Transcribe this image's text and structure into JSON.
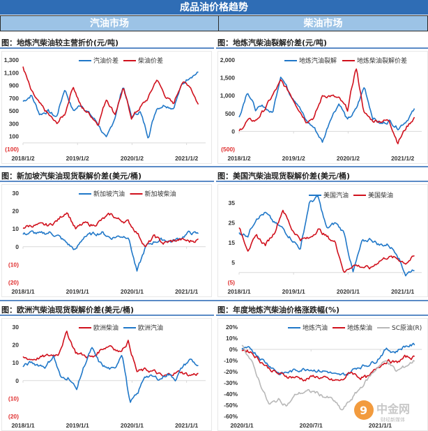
{
  "header": {
    "title": "成品油价格趋势",
    "left_section": "汽油市场",
    "right_section": "柴油市场"
  },
  "watermark": {
    "text": "中金网",
    "sub": "财经新媒体",
    "url": "CNGOLD.COM.CN"
  },
  "colors": {
    "blue": "#1f77c8",
    "red": "#d0101c",
    "gray": "#b8b8b8",
    "header": "#2f6db5",
    "section": "#9cc3e6"
  },
  "chart_data": [
    {
      "type": "line",
      "title": "图：地炼汽柴油较主营折价(元/吨)",
      "ylim": [
        -100,
        1300
      ],
      "yticks": [
        "1,300",
        "1,100",
        "900",
        "700",
        "500",
        "300",
        "100",
        "(100)"
      ],
      "ytick_values": [
        1300,
        1100,
        900,
        700,
        500,
        300,
        100,
        -100
      ],
      "xticks": [
        "2018/1/2",
        "2019/1/2",
        "2020/1/2",
        "2021/1/2"
      ],
      "xrange": [
        0,
        3.35
      ],
      "xtick_pos": [
        0,
        1,
        2,
        3
      ],
      "series": [
        {
          "name": "汽油价差",
          "color": "#1f77c8",
          "values": [
            650,
            750,
            450,
            500,
            400,
            850,
            500,
            600,
            450,
            300,
            50,
            400,
            900,
            400,
            500,
            100,
            550,
            600,
            550,
            900,
            1050,
            1100
          ]
        },
        {
          "name": "柴油价差",
          "color": "#d0101c",
          "values": [
            1200,
            800,
            600,
            450,
            300,
            450,
            900,
            550,
            450,
            300,
            700,
            450,
            850,
            400,
            550,
            700,
            1000,
            750,
            600,
            950,
            900,
            600
          ]
        }
      ]
    },
    {
      "type": "line",
      "title": "图：地炼汽柴油裂解价差(元/吨)",
      "ylim": [
        -500,
        2000
      ],
      "yticks": [
        "2,000",
        "1,500",
        "1,000",
        "500",
        "0",
        "(500)"
      ],
      "ytick_values": [
        2000,
        1500,
        1000,
        500,
        0,
        -500
      ],
      "xticks": [
        "2018/1/2",
        "2019/1/2",
        "2020/1/2",
        "2021/1/2"
      ],
      "xrange": [
        0,
        3.35
      ],
      "xtick_pos": [
        0,
        1,
        2,
        3
      ],
      "series": [
        {
          "name": "地炼汽油裂解",
          "color": "#1f77c8",
          "values": [
            400,
            1150,
            600,
            700,
            500,
            1600,
            1100,
            800,
            300,
            100,
            -300,
            400,
            800,
            300,
            600,
            1250,
            400,
            200,
            300,
            100,
            300,
            600
          ]
        },
        {
          "name": "地炼柴油裂解价差",
          "color": "#d0101c",
          "values": [
            0,
            300,
            300,
            600,
            1000,
            1400,
            1100,
            700,
            300,
            400,
            1000,
            1000,
            900,
            600,
            1800,
            500,
            300,
            300,
            300,
            -300,
            100,
            400
          ]
        }
      ]
    },
    {
      "type": "line",
      "title": "图：新加坡汽柴油现货裂解价差(美元/桶)",
      "ylim": [
        -20,
        30
      ],
      "yticks": [
        "30",
        "20",
        "10",
        "0",
        "(10)",
        "(20)"
      ],
      "ytick_values": [
        30,
        20,
        10,
        0,
        -10,
        -20
      ],
      "xticks": [
        "2018/1/1",
        "2019/1/1",
        "2020/1/1",
        "2021/1/1"
      ],
      "xrange": [
        0,
        3.35
      ],
      "xtick_pos": [
        0,
        1,
        2,
        3
      ],
      "series": [
        {
          "name": "新加坡汽油",
          "color": "#1f77c8",
          "values": [
            7,
            8,
            7,
            8,
            6,
            2,
            -2,
            6,
            7,
            8,
            5,
            6,
            6,
            -14,
            0,
            3,
            4,
            3,
            5,
            8,
            7
          ]
        },
        {
          "name": "新加坡柴油",
          "color": "#d0101c",
          "values": [
            11,
            12,
            12,
            12,
            15,
            20,
            10,
            13,
            12,
            15,
            18,
            15,
            14,
            8,
            0,
            6,
            2,
            3,
            4,
            3,
            4
          ]
        }
      ]
    },
    {
      "type": "line",
      "title": "图：美国汽柴油现货裂解价差(美元/桶)",
      "ylim": [
        -5,
        40
      ],
      "yticks": [
        "35",
        "25",
        "15",
        "5",
        "(5)"
      ],
      "ytick_values": [
        35,
        25,
        15,
        5,
        -5
      ],
      "xticks": [
        "2018/1/1",
        "2019/1/1",
        "2020/1/1",
        "2021/1/1"
      ],
      "xrange": [
        0,
        3.35
      ],
      "xtick_pos": [
        0,
        1,
        2,
        3
      ],
      "series": [
        {
          "name": "美国汽油",
          "color": "#1f77c8",
          "values": [
            20,
            19,
            28,
            30,
            25,
            22,
            17,
            12,
            35,
            38,
            22,
            25,
            20,
            0,
            15,
            17,
            14,
            14,
            10,
            -1,
            2
          ]
        },
        {
          "name": "美国柴油",
          "color": "#d0101c",
          "values": [
            22,
            12,
            18,
            14,
            20,
            32,
            22,
            17,
            17,
            22,
            18,
            15,
            0,
            4,
            3,
            2,
            6,
            8,
            7,
            5,
            8
          ]
        }
      ]
    },
    {
      "type": "line",
      "title": "图：欧洲汽柴油现货裂解价差(美元/桶)",
      "ylim": [
        -20,
        30
      ],
      "yticks": [
        "30",
        "20",
        "10",
        "0",
        "(10)",
        "(20)"
      ],
      "ytick_values": [
        30,
        20,
        10,
        0,
        -10,
        -20
      ],
      "xticks": [
        "2018/1/1",
        "2019/1/1",
        "2020/1/1",
        "2021/1/1"
      ],
      "xrange": [
        0,
        3.35
      ],
      "xtick_pos": [
        0,
        1,
        2,
        3
      ],
      "series": [
        {
          "name": "欧洲柴油",
          "color": "#d0101c",
          "values": [
            13,
            12,
            13,
            14,
            15,
            27,
            16,
            14,
            13,
            18,
            20,
            16,
            22,
            5,
            6,
            5,
            2,
            4,
            5,
            3,
            4
          ]
        },
        {
          "name": "欧洲汽油",
          "color": "#1f77c8",
          "values": [
            8,
            10,
            9,
            8,
            14,
            1,
            2,
            -5,
            8,
            18,
            10,
            7,
            6,
            16,
            -12,
            -8,
            3,
            2,
            1,
            4,
            1,
            8,
            12,
            8
          ]
        }
      ]
    },
    {
      "type": "line",
      "title": "图：年度地炼汽柴油价格涨跌幅(%)",
      "ylim": [
        -60,
        20
      ],
      "yticks": [
        "20%",
        "10%",
        "0%",
        "-10%",
        "-20%",
        "-30%",
        "-40%",
        "-50%",
        "-60%"
      ],
      "ytick_values": [
        20,
        10,
        0,
        -10,
        -20,
        -30,
        -40,
        -50,
        -60
      ],
      "xticks": [
        "2020/1/1",
        "2020/7/1",
        "2021/1/1"
      ],
      "xrange": [
        0,
        1.3
      ],
      "xtick_pos": [
        0,
        0.5,
        1
      ],
      "series": [
        {
          "name": "地炼汽油",
          "color": "#1f77c8",
          "values": [
            0,
            0,
            -8,
            -15,
            -22,
            -20,
            -18,
            -17,
            -19,
            -20,
            -24,
            -22,
            -16,
            -14,
            -10,
            0,
            -2,
            3,
            4
          ]
        },
        {
          "name": "地炼柴油",
          "color": "#d0101c",
          "values": [
            0,
            -2,
            -10,
            -17,
            -22,
            -24,
            -25,
            -27,
            -24,
            -26,
            -28,
            -28,
            -20,
            -25,
            -25,
            -15,
            -10,
            -12,
            -7,
            -7
          ]
        },
        {
          "name": "SC原油(R)",
          "color": "#b8b8b8",
          "values": [
            5,
            -10,
            -30,
            -50,
            -45,
            -50,
            -40,
            -38,
            -38,
            -42,
            -45,
            -55,
            -45,
            -35,
            -25,
            -15,
            -10,
            -20,
            -15,
            -10
          ]
        }
      ]
    }
  ]
}
